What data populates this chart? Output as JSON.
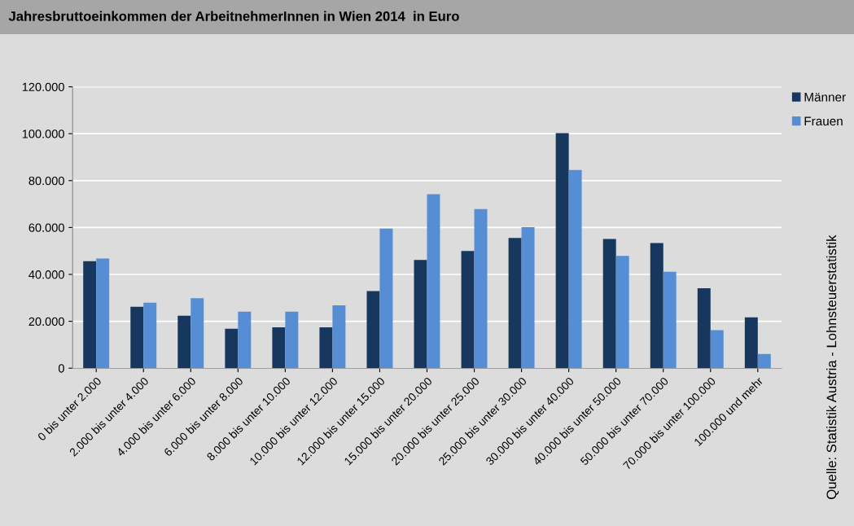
{
  "chart_data": {
    "type": "bar",
    "title": "Jahresbruttoeinkommen der ArbeitnehmerInnen in Wien 2014  in Euro",
    "categories": [
      "0 bis unter 2.000",
      "2.000 bis unter 4.000",
      "4.000 bis unter 6.000",
      "6.000 bis unter 8.000",
      "8.000 bis unter 10.000",
      "10.000 bis unter 12.000",
      "12.000 bis unter 15.000",
      "15.000 bis unter 20.000",
      "20.000 bis unter 25.000",
      "25.000 bis unter 30.000",
      "30.000 bis unter 40.000",
      "40.000 bis unter 50.000",
      "50.000 bis unter 70.000",
      "70.000 bis unter 100.000",
      "100.000 und mehr"
    ],
    "series": [
      {
        "name": "Männer",
        "color": "#17375e",
        "values": [
          45600,
          26200,
          22400,
          16800,
          17400,
          17400,
          32900,
          46200,
          50000,
          55500,
          100200,
          55100,
          53400,
          34100,
          21700
        ]
      },
      {
        "name": "Frauen",
        "color": "#558ed5",
        "values": [
          46800,
          27900,
          29800,
          24100,
          24100,
          26800,
          59500,
          74200,
          67900,
          60100,
          84500,
          47900,
          41100,
          16200,
          6100
        ]
      }
    ],
    "ylim": [
      0,
      120000
    ],
    "yticks": [
      {
        "value": 0,
        "label": "0"
      },
      {
        "value": 20000,
        "label": "20.000"
      },
      {
        "value": 40000,
        "label": "40.000"
      },
      {
        "value": 60000,
        "label": "60.000"
      },
      {
        "value": 80000,
        "label": "80.000"
      },
      {
        "value": 100000,
        "label": "100.000"
      },
      {
        "value": 120000,
        "label": "120.000"
      }
    ],
    "grid": "y",
    "legend": "top right",
    "annotations": [
      "Quelle: Statistik Austria - Lohnsteuerstatistik"
    ]
  }
}
